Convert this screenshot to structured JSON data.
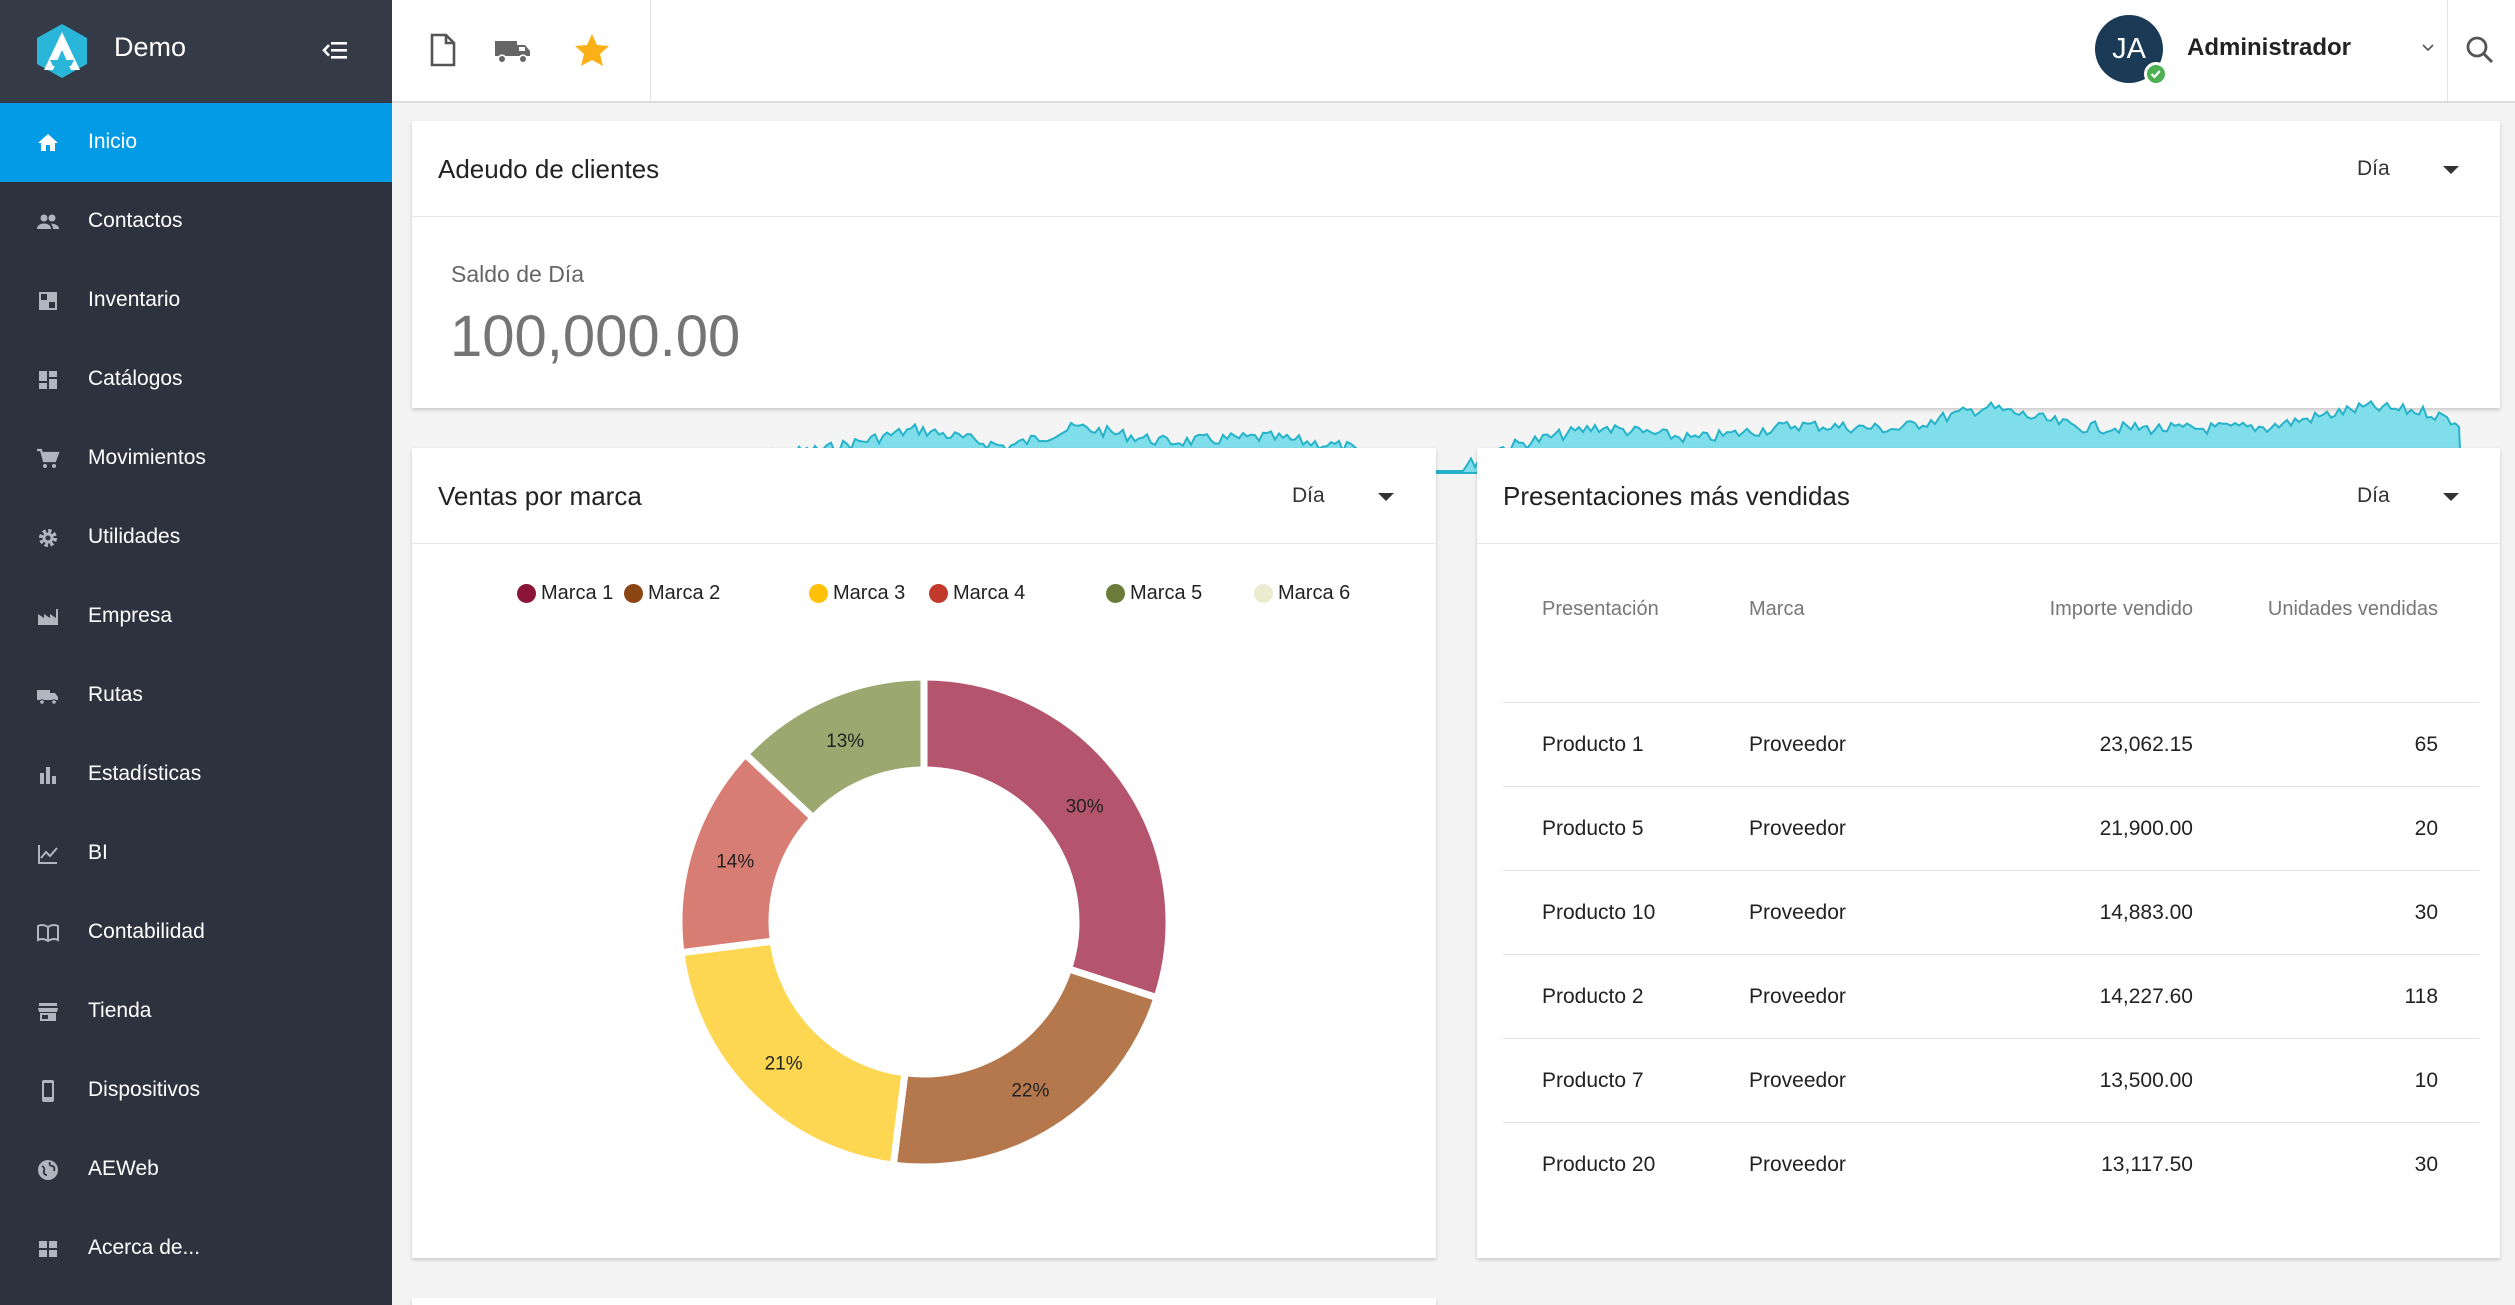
{
  "app": {
    "name": "Demo",
    "accent": "#039be5"
  },
  "sidebar": {
    "items": [
      {
        "label": "Inicio",
        "icon": "home-icon",
        "active": true
      },
      {
        "label": "Contactos",
        "icon": "people-icon"
      },
      {
        "label": "Inventario",
        "icon": "inventory-icon"
      },
      {
        "label": "Catálogos",
        "icon": "catalog-icon"
      },
      {
        "label": "Movimientos",
        "icon": "cart-icon"
      },
      {
        "label": "Utilidades",
        "icon": "gear-icon"
      },
      {
        "label": "Empresa",
        "icon": "factory-icon"
      },
      {
        "label": "Rutas",
        "icon": "truck-icon"
      },
      {
        "label": "Estadísticas",
        "icon": "bar-chart-icon"
      },
      {
        "label": "BI",
        "icon": "line-chart-icon"
      },
      {
        "label": "Contabilidad",
        "icon": "book-icon"
      },
      {
        "label": "Tienda",
        "icon": "store-icon"
      },
      {
        "label": "Dispositivos",
        "icon": "phone-icon"
      },
      {
        "label": "AEWeb",
        "icon": "globe-icon"
      },
      {
        "label": "Acerca de...",
        "icon": "grid-icon"
      }
    ]
  },
  "topbar": {
    "shortcuts": [
      "document-icon",
      "truck-icon",
      "star-icon"
    ],
    "user": {
      "initials": "JA",
      "name": "Administrador"
    }
  },
  "debt_card": {
    "title": "Adeudo de clientes",
    "period": "Día",
    "balance_label": "Saldo de Día",
    "balance_value": "100,000.00",
    "spark_color": "#80deea"
  },
  "sales_card": {
    "title": "Ventas por marca",
    "period": "Día"
  },
  "chart_data": {
    "type": "pie",
    "donut": true,
    "categories": [
      "Marca 1",
      "Marca 2",
      "Marca 3",
      "Marca 4",
      "Marca 5",
      "Marca 6"
    ],
    "values": [
      30,
      22,
      21,
      14,
      13,
      0
    ],
    "labels": [
      "30%",
      "22%",
      "21%",
      "14%",
      "13%",
      ""
    ],
    "colors": [
      "#b5546d",
      "#b5784c",
      "#fdd652",
      "#d87d74",
      "#9ca86f",
      "#ecebcf"
    ],
    "legend_colors": [
      "#8b1538",
      "#8b4513",
      "#ffc107",
      "#c0392b",
      "#6b7c3a",
      "#ecebcf"
    ],
    "legend": "top"
  },
  "top_products_card": {
    "title": "Presentaciones más vendidas",
    "period": "Día",
    "columns": [
      "Presentación",
      "Marca",
      "Importe vendido",
      "Unidades vendidas"
    ],
    "rows": [
      [
        "Producto 1",
        "Proveedor",
        "23,062.15",
        "65"
      ],
      [
        "Producto 5",
        "Proveedor",
        "21,900.00",
        "20"
      ],
      [
        "Producto 10",
        "Proveedor",
        "14,883.00",
        "30"
      ],
      [
        "Producto 2",
        "Proveedor",
        "14,227.60",
        "118"
      ],
      [
        "Producto 7",
        "Proveedor",
        "13,500.00",
        "10"
      ],
      [
        "Producto 20",
        "Proveedor",
        "13,117.50",
        "30"
      ]
    ]
  }
}
